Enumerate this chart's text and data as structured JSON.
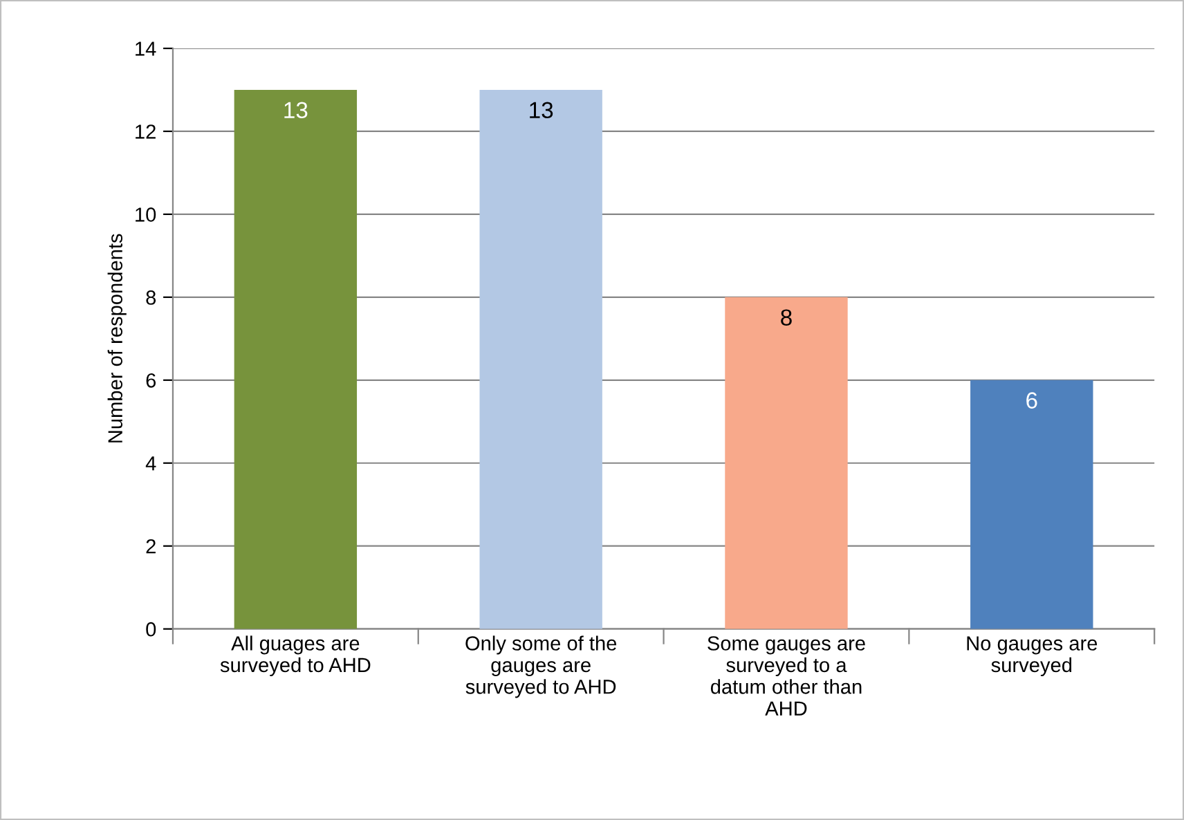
{
  "chart_data": {
    "type": "bar",
    "ylabel": "Number of respondents",
    "categories": [
      "All guages are\nsurveyed to AHD",
      "Only some of the\ngauges are\nsurveyed to AHD",
      "Some gauges are\nsurveyed to a\ndatum other than\nAHD",
      "No gauges are\nsurveyed"
    ],
    "values": [
      13,
      13,
      8,
      6
    ],
    "colors": [
      "#77933c",
      "#b3c8e4",
      "#f8a98b",
      "#4f81bd"
    ],
    "ylim": [
      0,
      14
    ],
    "yticks": [
      0,
      2,
      4,
      6,
      8,
      10,
      12,
      14
    ],
    "grid": "y",
    "data_labels": true
  }
}
